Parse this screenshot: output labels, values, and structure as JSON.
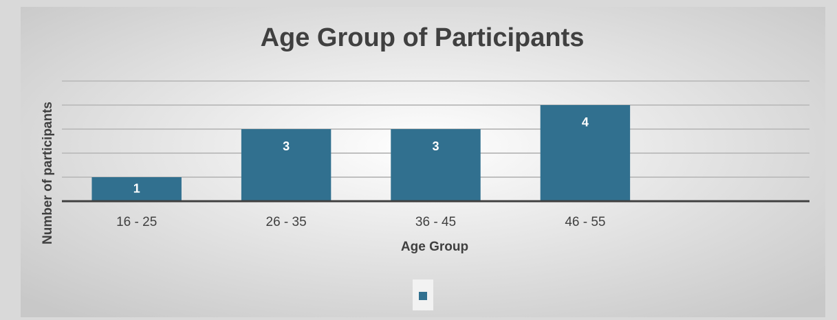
{
  "chart_data": {
    "type": "bar",
    "title": "Age Group of Participants",
    "x_label": "Age Group",
    "y_label": "Number of participants",
    "categories": [
      "16 - 25",
      "26 - 35",
      "36 - 45",
      "46 - 55",
      null
    ],
    "values": [
      1,
      3,
      3,
      4,
      null
    ],
    "color": "#31708f",
    "ylim": [
      0,
      5
    ],
    "yticks": [
      0,
      1,
      2,
      3,
      4,
      5
    ],
    "grid": true,
    "tick_labels": false,
    "data_labels": true,
    "legend": "bottom"
  }
}
